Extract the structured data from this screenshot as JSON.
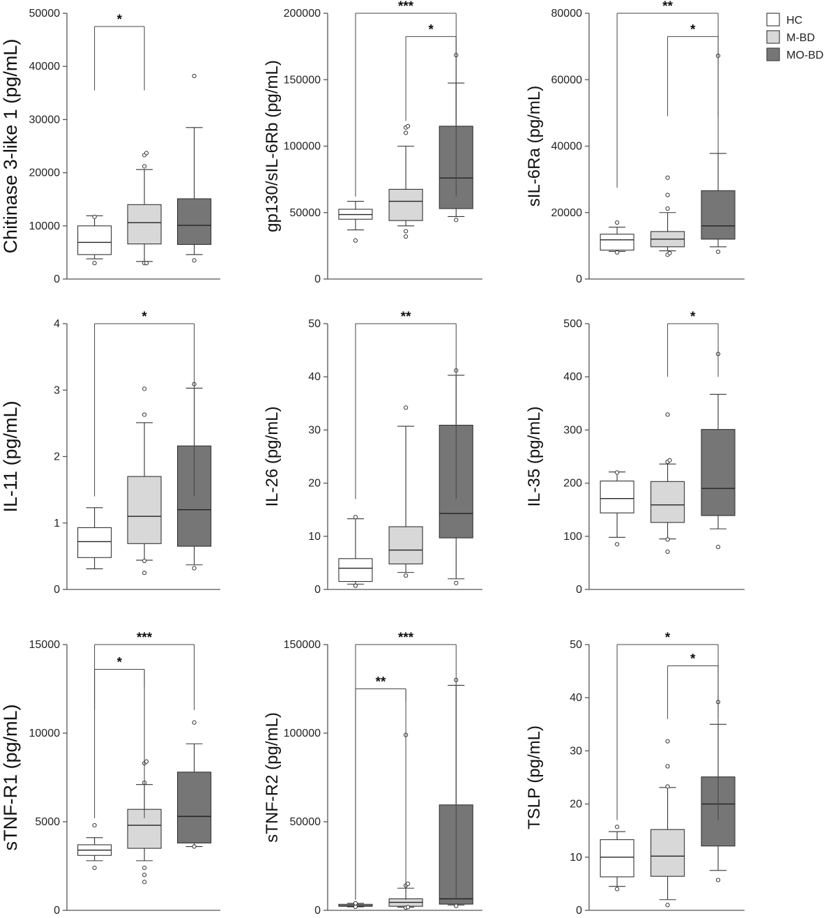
{
  "legend": [
    {
      "label": "HC",
      "color": "#ffffff"
    },
    {
      "label": "M-BD",
      "color": "#d8d8d8"
    },
    {
      "label": "MO-BD",
      "color": "#767676"
    }
  ],
  "chart_data": [
    {
      "type": "box",
      "ylabel": "Chitinase 3-like 1  (pg/mL)",
      "ylim": [
        0,
        50000
      ],
      "yticks": [
        0,
        10000,
        20000,
        30000,
        40000,
        50000
      ],
      "groups": [
        {
          "name": "HC",
          "whisker_low": 3800,
          "q1": 4600,
          "median": 6900,
          "q3": 10000,
          "whisker_high": 11900,
          "outliers": [
            3000,
            11700
          ]
        },
        {
          "name": "M-BD",
          "whisker_low": 3300,
          "q1": 6600,
          "median": 10600,
          "q3": 14000,
          "whisker_high": 20600,
          "outliers": [
            3000,
            3000,
            21200,
            23300,
            23700
          ]
        },
        {
          "name": "MO-BD",
          "whisker_low": 4600,
          "q1": 6500,
          "median": 10100,
          "q3": 15100,
          "whisker_high": 28500,
          "outliers": [
            3500,
            38200
          ]
        }
      ],
      "significance": [
        {
          "from": 0,
          "to": 1,
          "label": "*",
          "y": 47500,
          "drop_to": 35500
        }
      ]
    },
    {
      "type": "box",
      "ylabel": "gp130/sIL-6Rb (pg/mL)",
      "ylim": [
        0,
        200000
      ],
      "yticks": [
        0,
        50000,
        100000,
        150000,
        200000
      ],
      "groups": [
        {
          "name": "HC",
          "whisker_low": 37000,
          "q1": 45000,
          "median": 48500,
          "q3": 52500,
          "whisker_high": 58500,
          "outliers": [
            29000
          ]
        },
        {
          "name": "M-BD",
          "whisker_low": 40000,
          "q1": 44000,
          "median": 58500,
          "q3": 67500,
          "whisker_high": 100000,
          "outliers": [
            32000,
            36000,
            110000,
            114000,
            115000
          ]
        },
        {
          "name": "MO-BD",
          "whisker_low": 47000,
          "q1": 53000,
          "median": 76000,
          "q3": 115000,
          "whisker_high": 147500,
          "outliers": [
            44500,
            168500
          ]
        }
      ],
      "significance": [
        {
          "from": 0,
          "to": 2,
          "label": "***",
          "y": 200000,
          "drop_to": 62000
        },
        {
          "from": 1,
          "to": 2,
          "label": "*",
          "y": 182500,
          "drop_to": 119000
        }
      ]
    },
    {
      "type": "box",
      "ylabel": "sIL-6Ra (pg/mL)",
      "ylim": [
        0,
        80000
      ],
      "yticks": [
        0,
        20000,
        40000,
        60000,
        80000
      ],
      "groups": [
        {
          "name": "HC",
          "whisker_low": 8300,
          "q1": 8700,
          "median": 11800,
          "q3": 13500,
          "whisker_high": 15600,
          "outliers": [
            8000,
            17000
          ]
        },
        {
          "name": "M-BD",
          "whisker_low": 8500,
          "q1": 9700,
          "median": 12000,
          "q3": 14300,
          "whisker_high": 20000,
          "outliers": [
            7300,
            7800,
            21200,
            25300,
            30500
          ]
        },
        {
          "name": "MO-BD",
          "whisker_low": 9700,
          "q1": 12000,
          "median": 16000,
          "q3": 26600,
          "whisker_high": 37800,
          "outliers": [
            8200,
            67200
          ]
        }
      ],
      "significance": [
        {
          "from": 0,
          "to": 2,
          "label": "**",
          "y": 80000,
          "drop_to": 27500
        },
        {
          "from": 1,
          "to": 2,
          "label": "*",
          "y": 73000,
          "drop_to": 49000
        }
      ]
    },
    {
      "type": "box",
      "ylabel": "IL-11 (pg/mL)",
      "ylim": [
        0,
        4
      ],
      "yticks": [
        0,
        1,
        2,
        3,
        4
      ],
      "groups": [
        {
          "name": "HC",
          "whisker_low": 0.31,
          "q1": 0.48,
          "median": 0.72,
          "q3": 0.93,
          "whisker_high": 1.23,
          "outliers": []
        },
        {
          "name": "M-BD",
          "whisker_low": 0.44,
          "q1": 0.69,
          "median": 1.1,
          "q3": 1.7,
          "whisker_high": 2.51,
          "outliers": [
            0.25,
            0.43,
            2.63,
            3.02
          ]
        },
        {
          "name": "MO-BD",
          "whisker_low": 0.37,
          "q1": 0.65,
          "median": 1.2,
          "q3": 2.16,
          "whisker_high": 3.03,
          "outliers": [
            0.32,
            3.09
          ]
        }
      ],
      "significance": [
        {
          "from": 0,
          "to": 2,
          "label": "*",
          "y": 4.0,
          "drop_to": 1.4
        }
      ]
    },
    {
      "type": "box",
      "ylabel": "IL-26 (pg/mL)",
      "ylim": [
        0,
        50
      ],
      "yticks": [
        0,
        10,
        20,
        30,
        40,
        50
      ],
      "groups": [
        {
          "name": "HC",
          "whisker_low": 1.0,
          "q1": 1.5,
          "median": 4.0,
          "q3": 5.8,
          "whisker_high": 13.3,
          "outliers": [
            0.7,
            13.6
          ]
        },
        {
          "name": "M-BD",
          "whisker_low": 3.2,
          "q1": 4.8,
          "median": 7.4,
          "q3": 11.8,
          "whisker_high": 30.7,
          "outliers": [
            2.6,
            34.2
          ]
        },
        {
          "name": "MO-BD",
          "whisker_low": 2.0,
          "q1": 9.7,
          "median": 14.3,
          "q3": 30.9,
          "whisker_high": 40.3,
          "outliers": [
            1.2,
            41.2
          ]
        }
      ],
      "significance": [
        {
          "from": 0,
          "to": 2,
          "label": "**",
          "y": 50,
          "drop_to": 17
        }
      ]
    },
    {
      "type": "box",
      "ylabel": "IL-35 (pg/mL)",
      "ylim": [
        0,
        500
      ],
      "yticks": [
        0,
        100,
        200,
        300,
        400,
        500
      ],
      "groups": [
        {
          "name": "HC",
          "whisker_low": 98,
          "q1": 144,
          "median": 171,
          "q3": 204,
          "whisker_high": 221,
          "outliers": [
            85,
            220
          ]
        },
        {
          "name": "M-BD",
          "whisker_low": 95,
          "q1": 126,
          "median": 159,
          "q3": 203,
          "whisker_high": 236,
          "outliers": [
            71,
            94,
            240,
            243,
            329
          ]
        },
        {
          "name": "MO-BD",
          "whisker_low": 114,
          "q1": 139,
          "median": 190,
          "q3": 301,
          "whisker_high": 367,
          "outliers": [
            80,
            443
          ]
        }
      ],
      "significance": [
        {
          "from": 1,
          "to": 2,
          "label": "*",
          "y": 500,
          "drop_to": 400
        }
      ]
    },
    {
      "type": "box",
      "ylabel": "sTNF-R1  (pg/mL)",
      "ylim": [
        0,
        15000
      ],
      "yticks": [
        0,
        5000,
        10000,
        15000
      ],
      "groups": [
        {
          "name": "HC",
          "whisker_low": 2800,
          "q1": 3100,
          "median": 3400,
          "q3": 3700,
          "whisker_high": 4100,
          "outliers": [
            2400,
            4800
          ]
        },
        {
          "name": "M-BD",
          "whisker_low": 2800,
          "q1": 3500,
          "median": 4800,
          "q3": 5700,
          "whisker_high": 7100,
          "outliers": [
            1600,
            2000,
            2400,
            7200,
            8300,
            8400
          ]
        },
        {
          "name": "MO-BD",
          "whisker_low": 3600,
          "q1": 3800,
          "median": 5300,
          "q3": 7800,
          "whisker_high": 9400,
          "outliers": [
            3600,
            10600
          ]
        }
      ],
      "significance": [
        {
          "from": 0,
          "to": 2,
          "label": "***",
          "y": 15000,
          "drop_to": 11300
        },
        {
          "from": 0,
          "to": 1,
          "label": "*",
          "y": 13600,
          "drop_to": 5200
        },
        {
          "from": 1,
          "to": 1,
          "label": "",
          "y": 13600,
          "drop_to": 12600
        }
      ]
    },
    {
      "type": "box",
      "ylabel": "sTNF-R2 (pg/mL)",
      "ylim": [
        0,
        150000
      ],
      "yticks": [
        0,
        50000,
        100000,
        150000
      ],
      "groups": [
        {
          "name": "HC",
          "whisker_low": 2000,
          "q1": 2300,
          "median": 2700,
          "q3": 3400,
          "whisker_high": 3900,
          "outliers": [
            2000,
            4000
          ]
        },
        {
          "name": "M-BD",
          "whisker_low": 1800,
          "q1": 2300,
          "median": 4500,
          "q3": 6500,
          "whisker_high": 12500,
          "outliers": [
            1500,
            1800,
            14000,
            15000,
            99000
          ]
        },
        {
          "name": "MO-BD",
          "whisker_low": 3000,
          "q1": 3500,
          "median": 6500,
          "q3": 59500,
          "whisker_high": 127000,
          "outliers": [
            2500,
            130000
          ]
        }
      ],
      "significance": [
        {
          "from": 0,
          "to": 2,
          "label": "***",
          "y": 150000,
          "drop_to": 6000
        },
        {
          "from": 0,
          "to": 1,
          "label": "**",
          "y": 125000,
          "drop_to": 6000
        },
        {
          "from": 1,
          "to": 1,
          "label": "",
          "y": 125000,
          "drop_to": 118000
        }
      ]
    },
    {
      "type": "box",
      "ylabel": "TSLP (pg/mL)",
      "ylim": [
        0,
        50
      ],
      "yticks": [
        0,
        10,
        20,
        30,
        40,
        50
      ],
      "groups": [
        {
          "name": "HC",
          "whisker_low": 4.5,
          "q1": 6.3,
          "median": 10.0,
          "q3": 13.3,
          "whisker_high": 14.8,
          "outliers": [
            4.0,
            15.7
          ]
        },
        {
          "name": "M-BD",
          "whisker_low": 2.0,
          "q1": 6.4,
          "median": 10.2,
          "q3": 15.2,
          "whisker_high": 23.1,
          "outliers": [
            1.0,
            23.3,
            27.1,
            31.8
          ]
        },
        {
          "name": "MO-BD",
          "whisker_low": 7.5,
          "q1": 12.1,
          "median": 20.0,
          "q3": 25.1,
          "whisker_high": 35.0,
          "outliers": [
            5.7,
            39.2
          ]
        }
      ],
      "significance": [
        {
          "from": 0,
          "to": 2,
          "label": "*",
          "y": 50,
          "drop_to": 17
        },
        {
          "from": 1,
          "to": 2,
          "label": "*",
          "y": 46,
          "drop_to": 36
        }
      ]
    }
  ]
}
